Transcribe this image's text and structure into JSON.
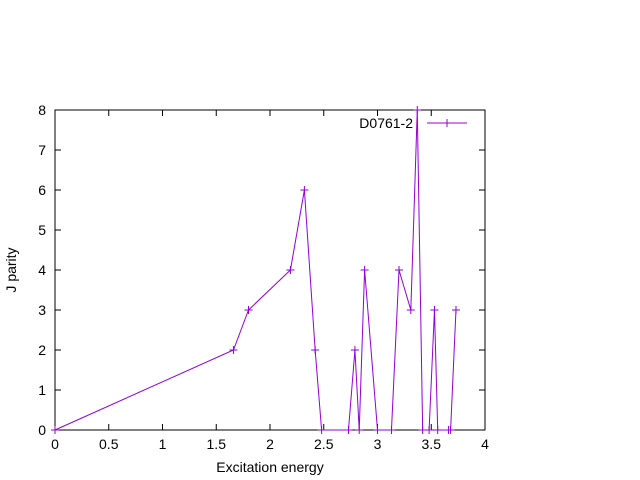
{
  "chart_data": {
    "type": "line",
    "x_label": "Excitation energy",
    "y_label": "J parity",
    "series": [
      {
        "name": "D0761-2",
        "color": "#9400d3",
        "x": [
          0,
          1.66,
          1.8,
          2.19,
          2.32,
          2.42,
          2.48,
          2.73,
          2.79,
          2.83,
          2.88,
          3.0,
          3.13,
          3.2,
          3.31,
          3.37,
          3.42,
          3.48,
          3.53,
          3.56,
          3.66,
          3.68,
          3.73
        ],
        "values": [
          0,
          2,
          3,
          4,
          6,
          2,
          0,
          0,
          2,
          0,
          4,
          0,
          0,
          4,
          3,
          8,
          0,
          0,
          3,
          0,
          0,
          0,
          3
        ]
      }
    ],
    "xlim": [
      0,
      4
    ],
    "xticks": [
      0,
      0.5,
      1,
      1.5,
      2,
      2.5,
      3,
      3.5,
      4
    ],
    "ylim": [
      0,
      8
    ],
    "yticks": [
      0,
      1,
      2,
      3,
      4,
      5,
      6,
      7,
      8
    ],
    "legend": "top-right"
  }
}
